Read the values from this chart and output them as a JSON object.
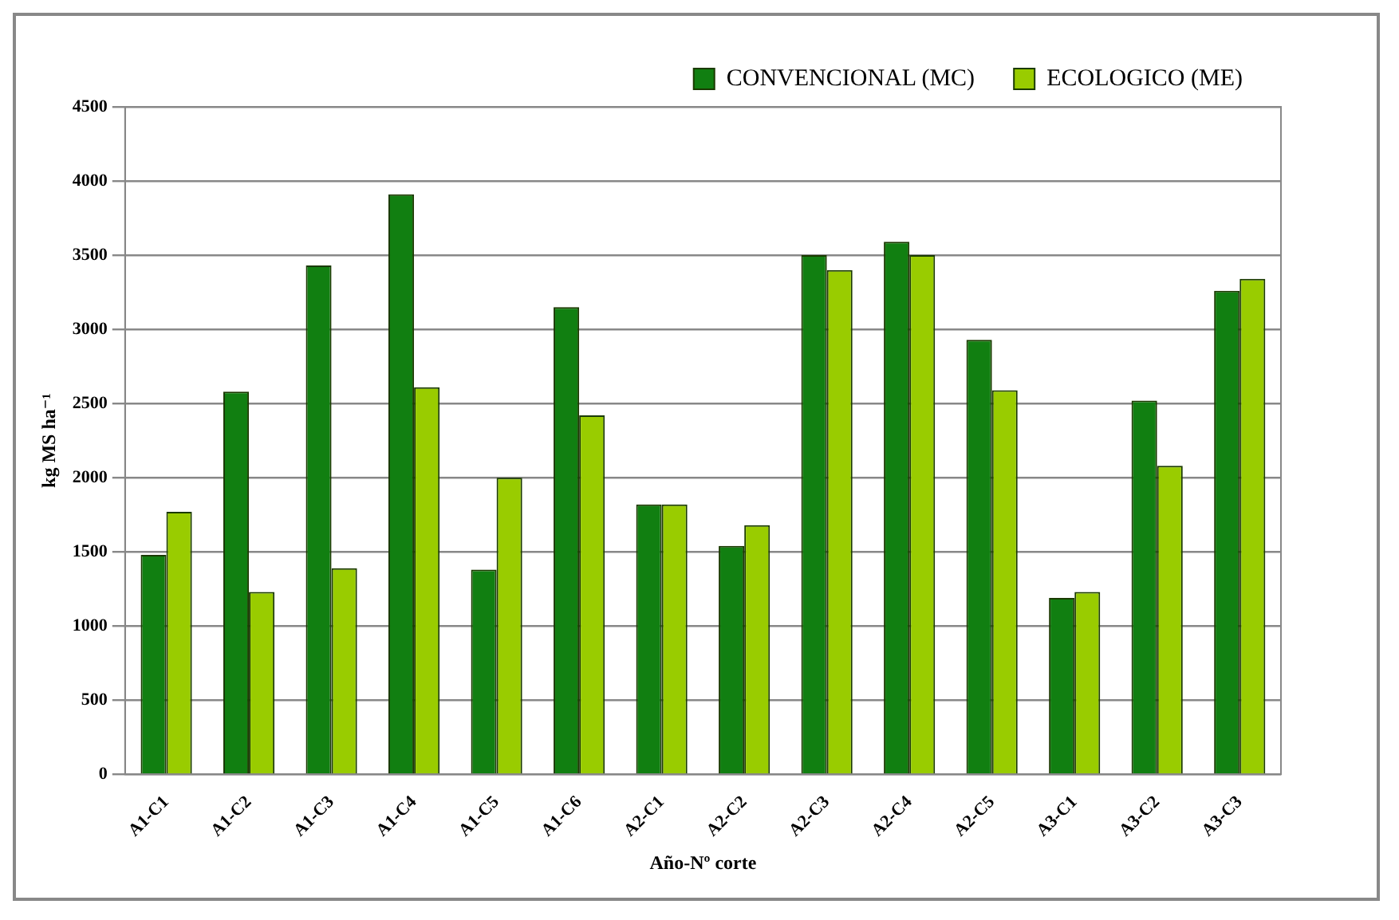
{
  "chart_data": {
    "type": "bar",
    "xlabel": "Año-Nº corte",
    "ylabel": "kg MS ha⁻¹",
    "categories": [
      "A1-C1",
      "A1-C2",
      "A1-C3",
      "A1-C4",
      "A1-C5",
      "A1-C6",
      "A2-C1",
      "A2-C2",
      "A2-C3",
      "A2-C4",
      "A2-C5",
      "A3-C1",
      "A3-C2",
      "A3-C3"
    ],
    "series": [
      {
        "name": "CONVENCIONAL (MC)",
        "color": "#117f11",
        "values": [
          1480,
          2580,
          3430,
          3910,
          1380,
          3150,
          1820,
          1540,
          3500,
          3590,
          2930,
          1190,
          2520,
          3260
        ]
      },
      {
        "name": "ECOLOGICO (ME)",
        "color": "#99cc00",
        "values": [
          1770,
          1230,
          1390,
          2610,
          2000,
          2420,
          1820,
          1680,
          3400,
          3500,
          2590,
          1230,
          2080,
          3340
        ]
      }
    ],
    "ylim": [
      0,
      4500
    ],
    "yticks": [
      0,
      500,
      1000,
      1500,
      2000,
      2500,
      3000,
      3500,
      4000,
      4500
    ],
    "grid": "y",
    "legend": "top right"
  }
}
